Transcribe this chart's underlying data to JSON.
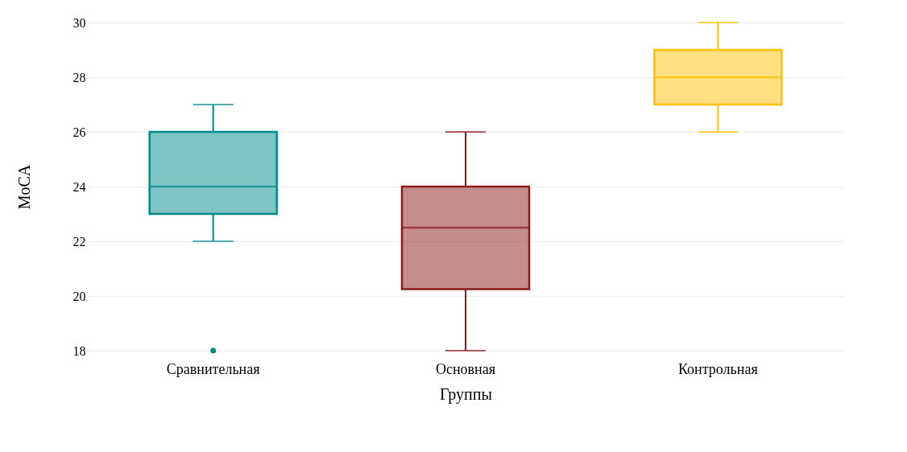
{
  "chart_data": {
    "type": "box",
    "xlabel": "Группы",
    "ylabel": "MoCA",
    "categories": [
      "Сравнительная",
      "Основная",
      "Контрольная"
    ],
    "colors": [
      "#008b8b",
      "#8b1a1a",
      "#ffc000"
    ],
    "boxes": [
      {
        "low": 22,
        "q1": 23,
        "median": 24,
        "q3": 26,
        "high": 27,
        "outliers": [
          18
        ]
      },
      {
        "low": 18,
        "q1": 20.25,
        "median": 22.5,
        "q3": 24,
        "high": 26
      },
      {
        "low": 26,
        "q1": 27,
        "median": 28,
        "q3": 29,
        "high": 30
      }
    ],
    "ylim": [
      18,
      30
    ],
    "yticks": [
      18,
      20,
      22,
      24,
      26,
      28,
      30
    ],
    "grid": "y"
  }
}
